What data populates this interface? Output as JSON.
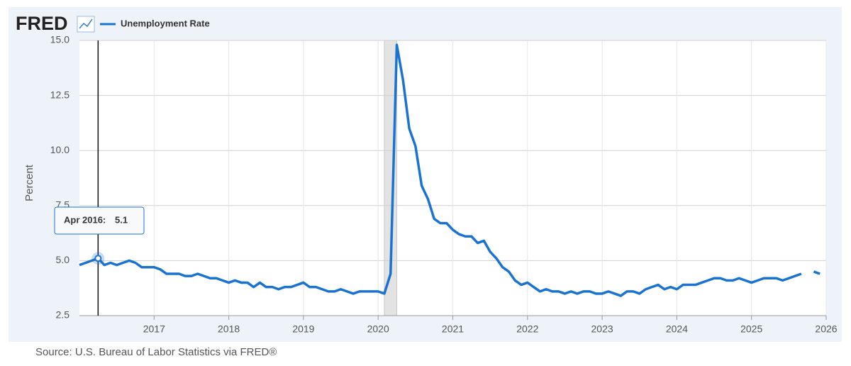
{
  "logo": "FRED",
  "source": "Source: U.S. Bureau of Labor Statistics via FRED®",
  "chart_data": {
    "type": "line",
    "y_label": "Percent",
    "x": [
      "2016-01",
      "2016-02",
      "2016-03",
      "2016-04",
      "2016-05",
      "2016-06",
      "2016-07",
      "2016-08",
      "2016-09",
      "2016-10",
      "2016-11",
      "2016-12",
      "2017-01",
      "2017-02",
      "2017-03",
      "2017-04",
      "2017-05",
      "2017-06",
      "2017-07",
      "2017-08",
      "2017-09",
      "2017-10",
      "2017-11",
      "2017-12",
      "2018-01",
      "2018-02",
      "2018-03",
      "2018-04",
      "2018-05",
      "2018-06",
      "2018-07",
      "2018-08",
      "2018-09",
      "2018-10",
      "2018-11",
      "2018-12",
      "2019-01",
      "2019-02",
      "2019-03",
      "2019-04",
      "2019-05",
      "2019-06",
      "2019-07",
      "2019-08",
      "2019-09",
      "2019-10",
      "2019-11",
      "2019-12",
      "2020-01",
      "2020-02",
      "2020-03",
      "2020-04",
      "2020-05",
      "2020-06",
      "2020-07",
      "2020-08",
      "2020-09",
      "2020-10",
      "2020-11",
      "2020-12",
      "2021-01",
      "2021-02",
      "2021-03",
      "2021-04",
      "2021-05",
      "2021-06",
      "2021-07",
      "2021-08",
      "2021-09",
      "2021-10",
      "2021-11",
      "2021-12",
      "2022-01",
      "2022-02",
      "2022-03",
      "2022-04",
      "2022-05",
      "2022-06",
      "2022-07",
      "2022-08",
      "2022-09",
      "2022-10",
      "2022-11",
      "2022-12",
      "2023-01",
      "2023-02",
      "2023-03",
      "2023-04",
      "2023-05",
      "2023-06",
      "2023-07",
      "2023-08",
      "2023-09",
      "2023-10",
      "2023-11",
      "2023-12",
      "2024-01",
      "2024-02",
      "2024-03",
      "2024-04",
      "2024-05",
      "2024-06",
      "2024-07",
      "2024-08",
      "2024-09",
      "2024-10",
      "2024-11",
      "2024-12",
      "2025-01",
      "2025-02",
      "2025-03",
      "2025-04",
      "2025-05",
      "2025-06",
      "2025-07",
      "2025-08",
      "2025-09",
      "2025-10",
      "2025-11",
      "2025-12"
    ],
    "series": [
      {
        "name": "Unemployment Rate",
        "color": "#1a73d0",
        "values": [
          4.8,
          4.9,
          5.0,
          5.1,
          4.8,
          4.9,
          4.8,
          4.9,
          5.0,
          4.9,
          4.7,
          4.7,
          4.7,
          4.6,
          4.4,
          4.4,
          4.4,
          4.3,
          4.3,
          4.4,
          4.3,
          4.2,
          4.2,
          4.1,
          4.0,
          4.1,
          4.0,
          4.0,
          3.8,
          4.0,
          3.8,
          3.8,
          3.7,
          3.8,
          3.8,
          3.9,
          4.0,
          3.8,
          3.8,
          3.7,
          3.6,
          3.6,
          3.7,
          3.6,
          3.5,
          3.6,
          3.6,
          3.6,
          3.6,
          3.5,
          4.4,
          14.8,
          13.2,
          11.0,
          10.2,
          8.4,
          7.8,
          6.9,
          6.7,
          6.7,
          6.4,
          6.2,
          6.1,
          6.1,
          5.8,
          5.9,
          5.4,
          5.1,
          4.7,
          4.5,
          4.1,
          3.9,
          4.0,
          3.8,
          3.6,
          3.7,
          3.6,
          3.6,
          3.5,
          3.6,
          3.5,
          3.6,
          3.6,
          3.5,
          3.5,
          3.6,
          3.5,
          3.4,
          3.6,
          3.6,
          3.5,
          3.7,
          3.8,
          3.9,
          3.7,
          3.8,
          3.7,
          3.9,
          3.9,
          3.9,
          4.0,
          4.1,
          4.2,
          4.2,
          4.1,
          4.1,
          4.2,
          4.1,
          4.0,
          4.1,
          4.2,
          4.2,
          4.2,
          4.1,
          4.2,
          4.3,
          4.4,
          null,
          4.5,
          4.4
        ]
      }
    ],
    "xlim": [
      "2016-01",
      "2026-01"
    ],
    "xticks": [
      {
        "value": "2017-01",
        "label": "2017"
      },
      {
        "value": "2018-01",
        "label": "2018"
      },
      {
        "value": "2019-01",
        "label": "2019"
      },
      {
        "value": "2020-01",
        "label": "2020"
      },
      {
        "value": "2021-01",
        "label": "2021"
      },
      {
        "value": "2022-01",
        "label": "2022"
      },
      {
        "value": "2023-01",
        "label": "2023"
      },
      {
        "value": "2024-01",
        "label": "2024"
      },
      {
        "value": "2025-01",
        "label": "2025"
      },
      {
        "value": "2026-01",
        "label": "2026"
      }
    ],
    "ylim": [
      2.5,
      15
    ],
    "yticks": [
      2.5,
      {
        "value": 5,
        "label": "5.0"
      },
      7.5,
      {
        "value": 10,
        "label": "10.0"
      },
      12.5,
      {
        "value": 15,
        "label": "15.0"
      }
    ],
    "grid": true,
    "recession": {
      "start": "2020-02",
      "end": "2020-04"
    },
    "tooltip": {
      "x": "2016-04",
      "label": "Apr 2016:"
    }
  }
}
